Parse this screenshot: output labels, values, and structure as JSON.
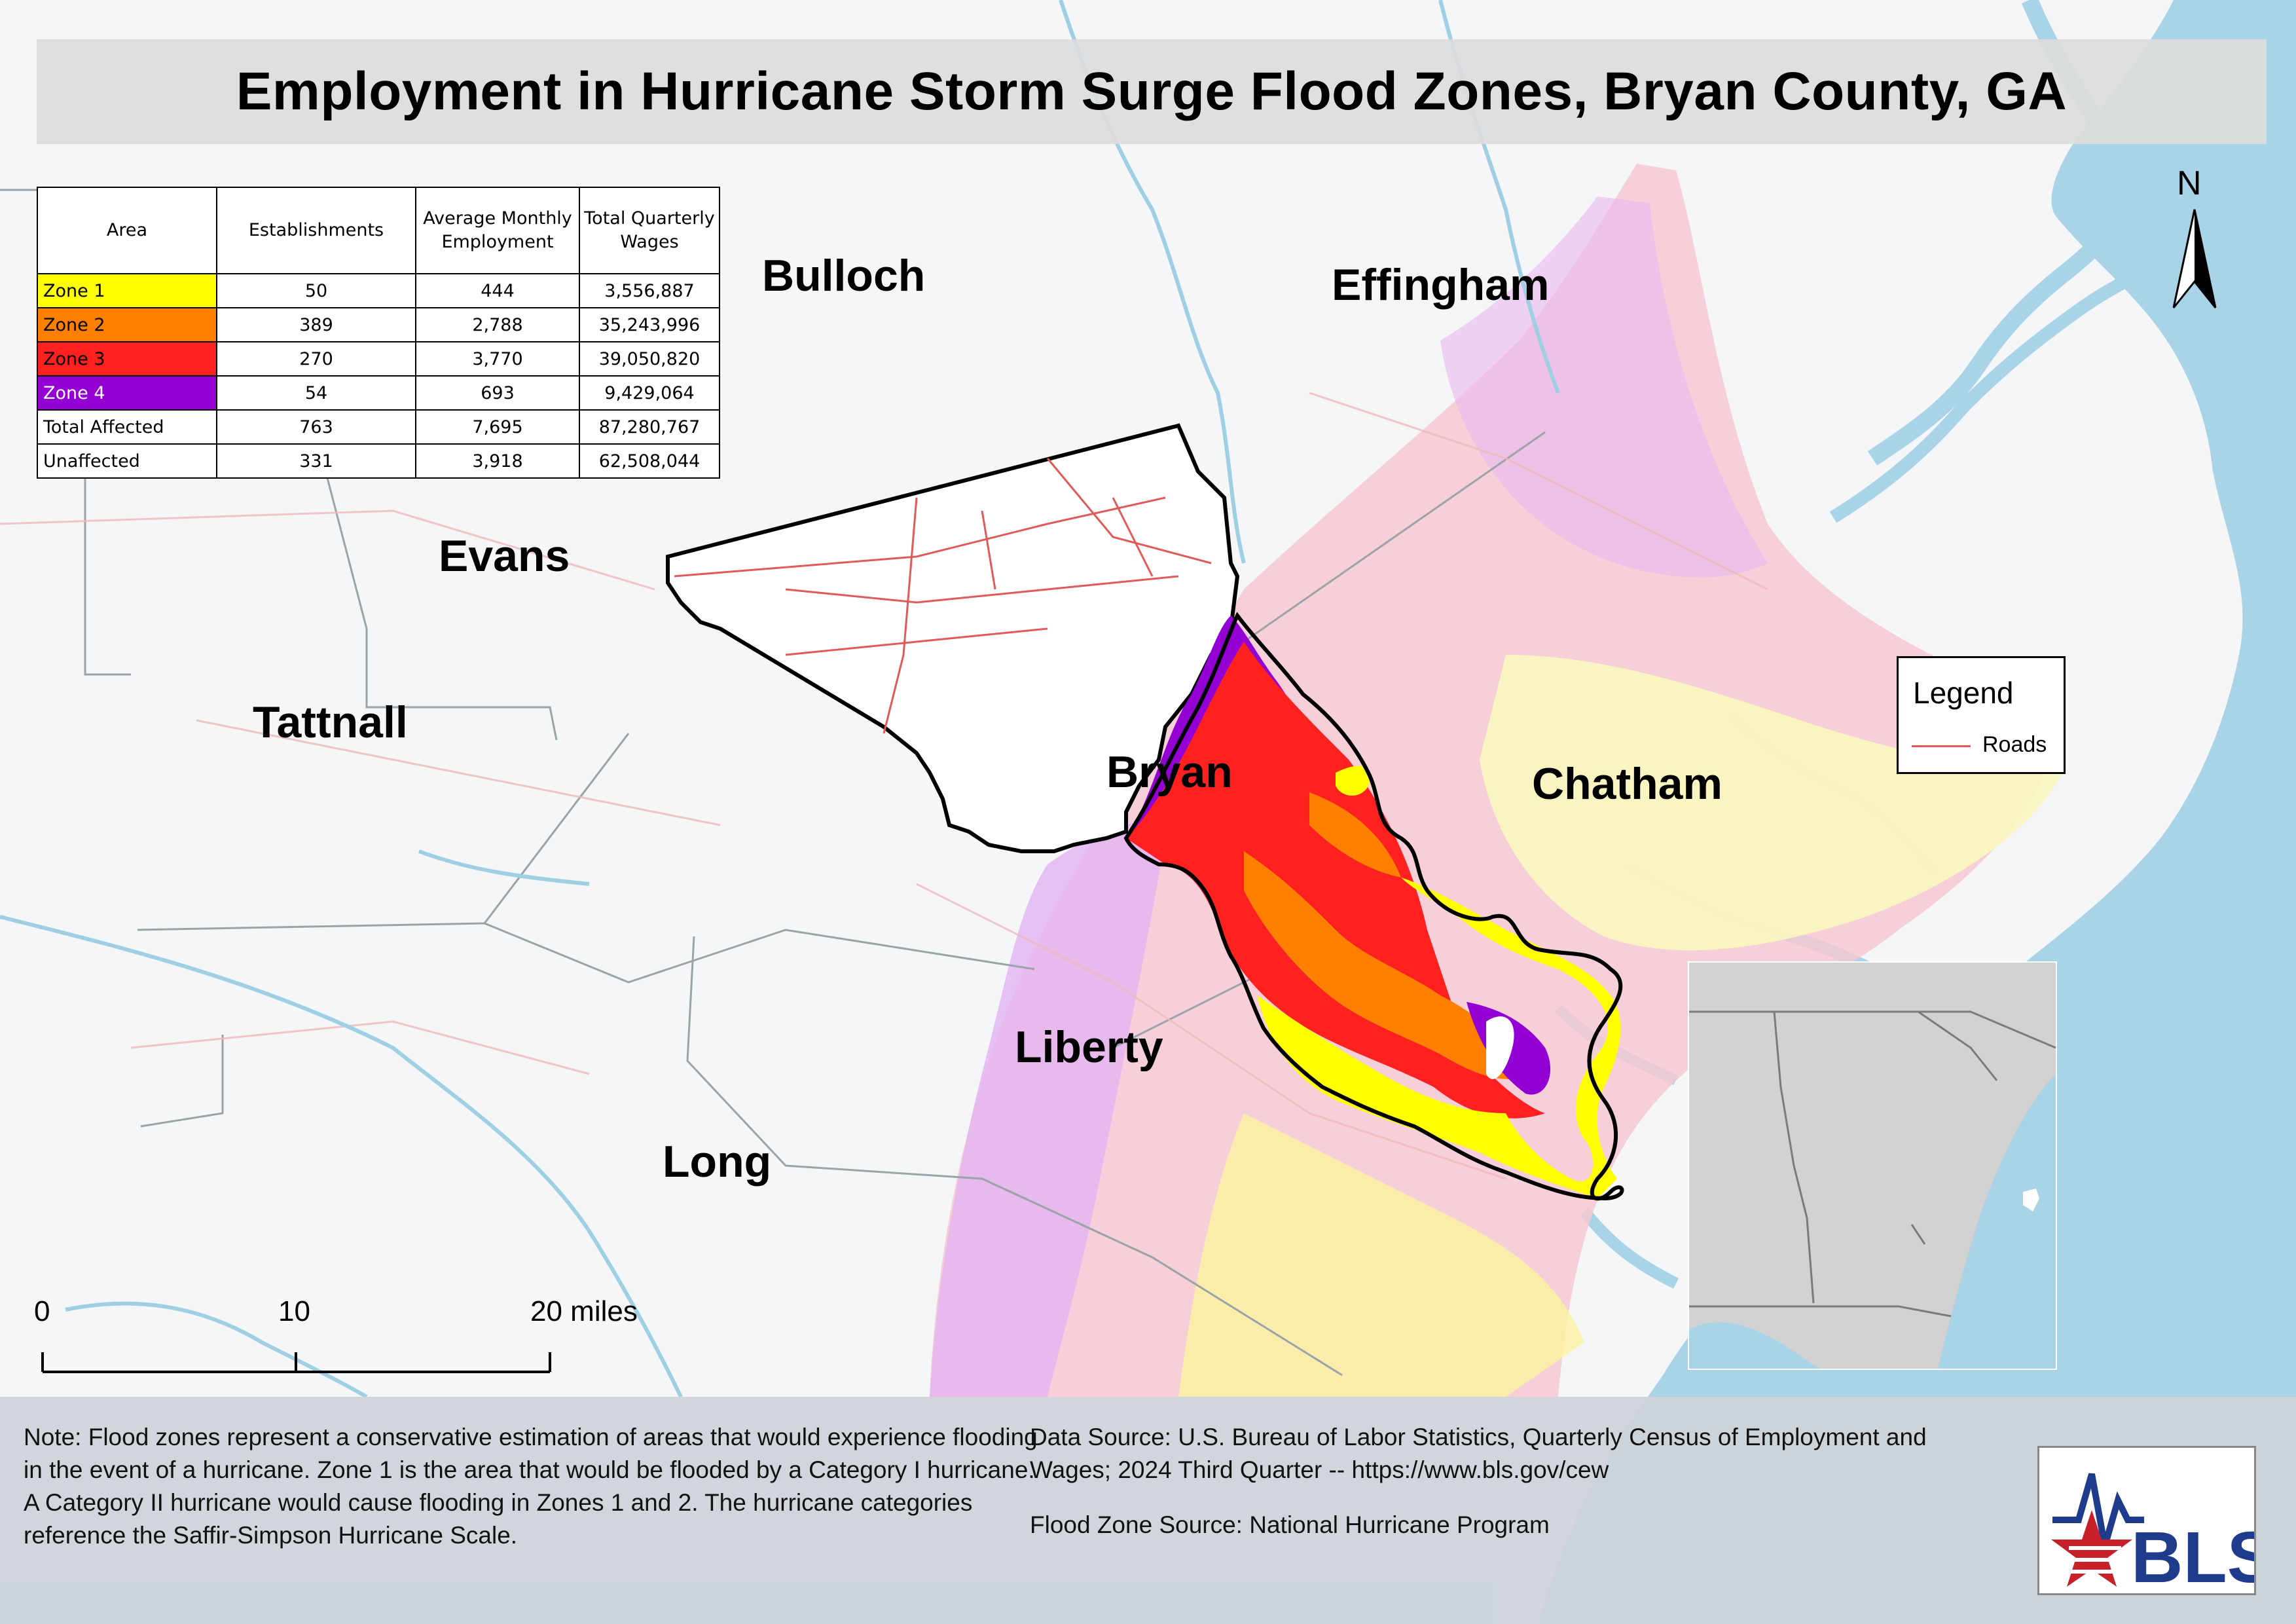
{
  "title": "Employment in Hurricane Storm Surge Flood Zones, Bryan County, GA",
  "table": {
    "headers": [
      "Area",
      "Establishments",
      "Average Monthly Employment",
      "Total Quarterly Wages"
    ],
    "rows": [
      {
        "area": "Zone 1",
        "establishments": "50",
        "employment": "444",
        "wages": "3,556,887",
        "color": "#ffff00",
        "text_color": "#000000"
      },
      {
        "area": "Zone 2",
        "establishments": "389",
        "employment": "2,788",
        "wages": "35,243,996",
        "color": "#ff8000",
        "text_color": "#000000"
      },
      {
        "area": "Zone 3",
        "establishments": "270",
        "employment": "3,770",
        "wages": "39,050,820",
        "color": "#ff2020",
        "text_color": "#000000"
      },
      {
        "area": "Zone 4",
        "establishments": "54",
        "employment": "693",
        "wages": "9,429,064",
        "color": "#9400d3",
        "text_color": "#ffffff"
      },
      {
        "area": "Total Affected",
        "establishments": "763",
        "employment": "7,695",
        "wages": "87,280,767",
        "color": "#ffffff",
        "text_color": "#000000"
      },
      {
        "area": "Unaffected",
        "establishments": "331",
        "employment": "3,918",
        "wages": "62,508,044",
        "color": "#ffffff",
        "text_color": "#000000"
      }
    ]
  },
  "counties": [
    "Bulloch",
    "Effingham",
    "Evans",
    "Tattnall",
    "Bryan",
    "Chatham",
    "Liberty",
    "Long"
  ],
  "legend": {
    "title": "Legend",
    "items": [
      {
        "label": "Roads",
        "color": "#e05a5a"
      }
    ]
  },
  "north_label": "N",
  "scale_bar": {
    "labels": [
      "0",
      "10",
      "20 miles"
    ]
  },
  "note": "Note: Flood zones represent a conservative estimation of areas that would experience flooding in the event of a hurricane. Zone 1 is the area that would be flooded by a Category I hurricane. A Category II hurricane would cause flooding in Zones 1 and 2. The hurricane categories reference the Saffir-Simpson Hurricane Scale.",
  "data_source": "Data Source: U.S. Bureau of Labor Statistics, Quarterly Census of Employment and Wages; 2024 Third Quarter -- https://www.bls.gov/cew",
  "flood_zone_source": "Flood Zone Source: National Hurricane Program",
  "logo_text": "BLS",
  "colors": {
    "water": "#a9d3e6",
    "zone1": "#ffff00",
    "zone2": "#ff8000",
    "zone3": "#ff2020",
    "zone4": "#9400d3",
    "roads": "#e05a5a"
  }
}
